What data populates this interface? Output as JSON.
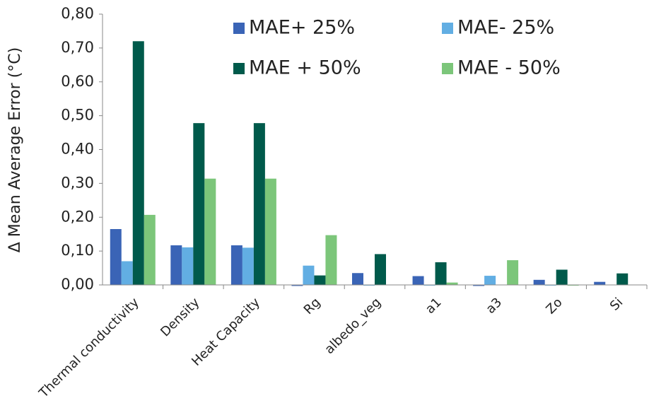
{
  "chart_data": {
    "type": "bar",
    "y_label": "Δ Mean Average Error (°C)",
    "categories": [
      "Thermal conductivity",
      "Density",
      "Heat Capacity",
      "Rg",
      "albedo_veg",
      "a1",
      "a3",
      "Zo",
      "Si"
    ],
    "series": [
      {
        "name": "MAE+ 25%",
        "color": "#3a64b6",
        "values": [
          0.165,
          0.117,
          0.117,
          -0.003,
          0.035,
          0.026,
          -0.003,
          0.015,
          0.009
        ]
      },
      {
        "name": "MAE- 25%",
        "color": "#62aee3",
        "values": [
          0.07,
          0.111,
          0.11,
          0.057,
          -0.002,
          -0.002,
          0.027,
          -0.002,
          0
        ]
      },
      {
        "name": "MAE + 50%",
        "color": "#005a4b",
        "values": [
          0.72,
          0.478,
          0.478,
          0.028,
          0.091,
          0.067,
          0,
          0.045,
          0.034
        ]
      },
      {
        "name": "MAE - 50%",
        "color": "#7cc67a",
        "values": [
          0.207,
          0.314,
          0.314,
          0.147,
          0,
          0.007,
          0.073,
          -0.002,
          0
        ]
      }
    ],
    "ylim": [
      0,
      0.8
    ],
    "yticks": [
      {
        "value": 0,
        "label": "0,00"
      },
      {
        "value": 0.1,
        "label": "0,10"
      },
      {
        "value": 0.2,
        "label": "0,20"
      },
      {
        "value": 0.3,
        "label": "0,30"
      },
      {
        "value": 0.4,
        "label": "0,40"
      },
      {
        "value": 0.5,
        "label": "0,50"
      },
      {
        "value": 0.6,
        "label": "0,60"
      },
      {
        "value": 0.7,
        "label": "0,70"
      },
      {
        "value": 0.8,
        "label": "0,80"
      }
    ]
  }
}
